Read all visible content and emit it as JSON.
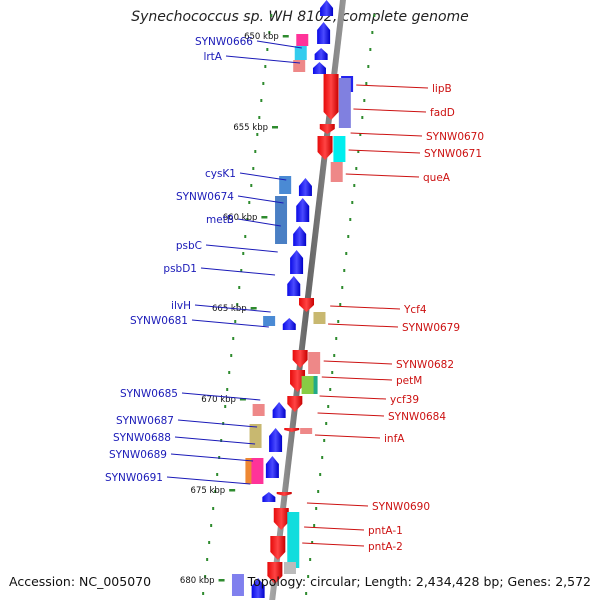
{
  "title": "Synechococcus sp. WH 8102, complete genome",
  "footer": {
    "accession": "Accession: NC_005070",
    "summary": "Topology: circular; Length: 2,434,428 bp; Genes: 2,572"
  },
  "axis_ticks": [
    "650 kbp",
    "655 kbp",
    "660 kbp",
    "665 kbp",
    "670 kbp",
    "675 kbp",
    "680 kbp"
  ],
  "left_labels": [
    "SYNW0666",
    "lrtA",
    "cysK1",
    "SYNW0674",
    "metB",
    "psbC",
    "psbD1",
    "ilvH",
    "SYNW0681",
    "SYNW0685",
    "SYNW0687",
    "SYNW0688",
    "SYNW0689",
    "SYNW0691"
  ],
  "right_labels": [
    "lipB",
    "fadD",
    "SYNW0670",
    "SYNW0671",
    "queA",
    "Ycf4",
    "SYNW0679",
    "SYNW0682",
    "petM",
    "ycf39",
    "SYNW0684",
    "infA",
    "SYNW0690",
    "pntA-1",
    "pntA-2"
  ],
  "colors": {
    "forward_strand": "#0a0ae6",
    "reverse_strand": "#e60a0a",
    "backbone": "#8a8a8a",
    "tick_mark": "#2e8b2e",
    "left_label": "#1a1ab8",
    "right_label": "#cc1111"
  }
}
